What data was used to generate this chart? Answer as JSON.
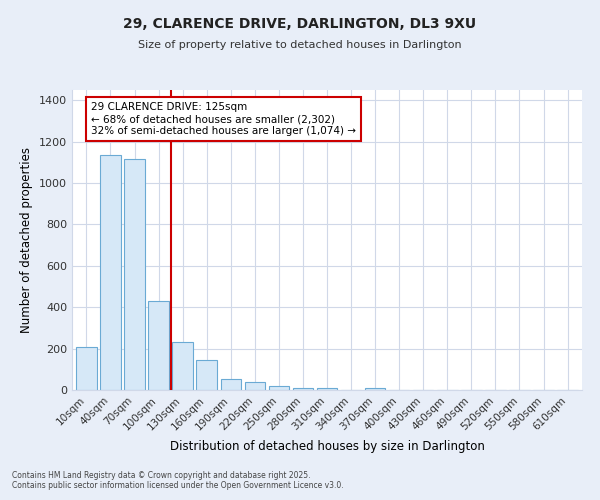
{
  "title": "29, CLARENCE DRIVE, DARLINGTON, DL3 9XU",
  "subtitle": "Size of property relative to detached houses in Darlington",
  "xlabel": "Distribution of detached houses by size in Darlington",
  "ylabel": "Number of detached properties",
  "bar_labels": [
    "10sqm",
    "40sqm",
    "70sqm",
    "100sqm",
    "130sqm",
    "160sqm",
    "190sqm",
    "220sqm",
    "250sqm",
    "280sqm",
    "310sqm",
    "340sqm",
    "370sqm",
    "400sqm",
    "430sqm",
    "460sqm",
    "490sqm",
    "520sqm",
    "550sqm",
    "580sqm",
    "610sqm"
  ],
  "bar_values": [
    208,
    1135,
    1115,
    430,
    232,
    143,
    55,
    40,
    17,
    10,
    10,
    0,
    10,
    0,
    0,
    0,
    0,
    0,
    0,
    0,
    0
  ],
  "bar_color": "#d6e8f7",
  "bar_edge_color": "#6aaad4",
  "vline_color": "#cc0000",
  "annotation_text": "29 CLARENCE DRIVE: 125sqm\n← 68% of detached houses are smaller (2,302)\n32% of semi-detached houses are larger (1,074) →",
  "annotation_box_color": "#ffffff",
  "annotation_box_edge": "#cc0000",
  "ylim": [
    0,
    1450
  ],
  "yticks": [
    0,
    200,
    400,
    600,
    800,
    1000,
    1200,
    1400
  ],
  "plot_bg_color": "#ffffff",
  "fig_bg_color": "#e8eef8",
  "grid_color": "#d0d8e8",
  "footer1": "Contains HM Land Registry data © Crown copyright and database right 2025.",
  "footer2": "Contains public sector information licensed under the Open Government Licence v3.0."
}
